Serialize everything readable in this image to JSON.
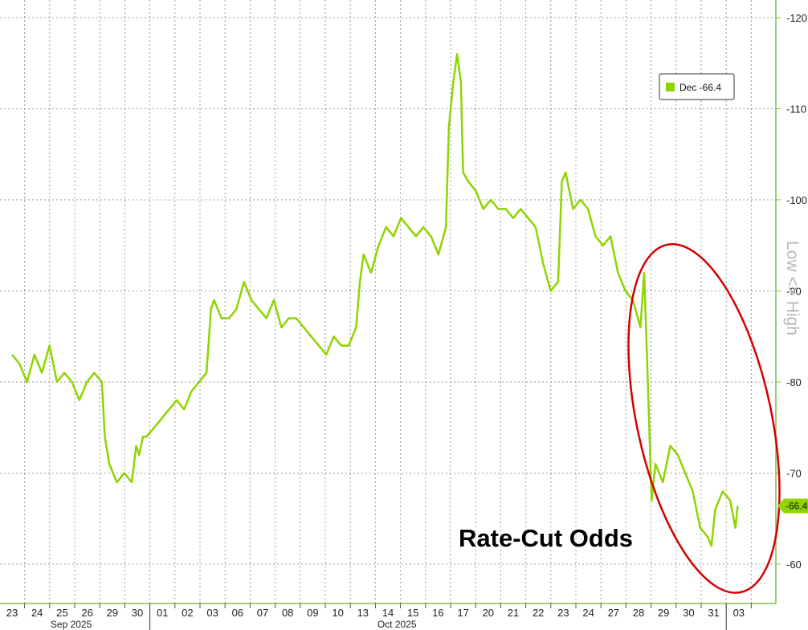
{
  "chart_data": {
    "type": "line",
    "ylabel": "Low <> High",
    "ylim": [
      55,
      121
    ],
    "y_ticks": [
      60,
      70,
      80,
      90,
      100,
      110,
      120
    ],
    "y_tick_labels": [
      "-60",
      "-70",
      "-80",
      "-90",
      "-100",
      "-110",
      "-120"
    ],
    "x_ticks": [
      "23",
      "24",
      "25",
      "26",
      "29",
      "30",
      "01",
      "02",
      "03",
      "06",
      "07",
      "08",
      "09",
      "10",
      "13",
      "14",
      "15",
      "16",
      "17",
      "20",
      "21",
      "22",
      "23",
      "24",
      "27",
      "28",
      "29",
      "30",
      "31",
      "03"
    ],
    "month_labels": [
      {
        "label": "Sep 2025",
        "tick_index": 3
      },
      {
        "label": "Oct 2025",
        "tick_index": 16
      }
    ],
    "grid": true,
    "legend_position": "top-right",
    "series": [
      {
        "name": "Dec",
        "legend_label": "Dec -66.4",
        "color": "#8fd400",
        "last_value": 66.4,
        "last_value_label": "-66.4",
        "values": [
          [
            0,
            83
          ],
          [
            1,
            82
          ],
          [
            2,
            80
          ],
          [
            3,
            83
          ],
          [
            4,
            81
          ],
          [
            5,
            84
          ],
          [
            6,
            80
          ],
          [
            7,
            81
          ],
          [
            8,
            80
          ],
          [
            9,
            78
          ],
          [
            10,
            80
          ],
          [
            11,
            81
          ],
          [
            12,
            80
          ],
          [
            12.4,
            74
          ],
          [
            13,
            71
          ],
          [
            14,
            69
          ],
          [
            15,
            70
          ],
          [
            16,
            69
          ],
          [
            16.6,
            73
          ],
          [
            17,
            72
          ],
          [
            17.5,
            74
          ],
          [
            18,
            74
          ],
          [
            19,
            75
          ],
          [
            20,
            76
          ],
          [
            21,
            77
          ],
          [
            22,
            78
          ],
          [
            23,
            77
          ],
          [
            24,
            79
          ],
          [
            25,
            80
          ],
          [
            26,
            81
          ],
          [
            26.6,
            88
          ],
          [
            27,
            89
          ],
          [
            28,
            87
          ],
          [
            29,
            87
          ],
          [
            30,
            88
          ],
          [
            31,
            91
          ],
          [
            32,
            89
          ],
          [
            33,
            88
          ],
          [
            34,
            87
          ],
          [
            35,
            89
          ],
          [
            36,
            86
          ],
          [
            37,
            87
          ],
          [
            38,
            87
          ],
          [
            39,
            86
          ],
          [
            40,
            85
          ],
          [
            41,
            84
          ],
          [
            42,
            83
          ],
          [
            43,
            85
          ],
          [
            44,
            84
          ],
          [
            45,
            84
          ],
          [
            46,
            86
          ],
          [
            46.5,
            91
          ],
          [
            47,
            94
          ],
          [
            48,
            92
          ],
          [
            49,
            95
          ],
          [
            50,
            97
          ],
          [
            51,
            96
          ],
          [
            52,
            98
          ],
          [
            53,
            97
          ],
          [
            54,
            96
          ],
          [
            55,
            97
          ],
          [
            56,
            96
          ],
          [
            57,
            94
          ],
          [
            58,
            97
          ],
          [
            58.4,
            108
          ],
          [
            59,
            113
          ],
          [
            59.5,
            116
          ],
          [
            60,
            113
          ],
          [
            60.3,
            103
          ],
          [
            61,
            102
          ],
          [
            62,
            101
          ],
          [
            63,
            99
          ],
          [
            64,
            100
          ],
          [
            65,
            99
          ],
          [
            66,
            99
          ],
          [
            67,
            98
          ],
          [
            68,
            99
          ],
          [
            69,
            98
          ],
          [
            70,
            97
          ],
          [
            71,
            93
          ],
          [
            72,
            90
          ],
          [
            73,
            91
          ],
          [
            73.5,
            102
          ],
          [
            74,
            103
          ],
          [
            75,
            99
          ],
          [
            76,
            100
          ],
          [
            77,
            99
          ],
          [
            78,
            96
          ],
          [
            79,
            95
          ],
          [
            80,
            96
          ],
          [
            81,
            92
          ],
          [
            82,
            90
          ],
          [
            83,
            89
          ],
          [
            84,
            86
          ],
          [
            84.5,
            92
          ],
          [
            85,
            80
          ],
          [
            85.5,
            67
          ],
          [
            86,
            71
          ],
          [
            87,
            69
          ],
          [
            88,
            73
          ],
          [
            89,
            72
          ],
          [
            90,
            70
          ],
          [
            91,
            68
          ],
          [
            92,
            64
          ],
          [
            93,
            63
          ],
          [
            93.5,
            62
          ],
          [
            94,
            66
          ],
          [
            95,
            68
          ],
          [
            96,
            67
          ],
          [
            96.7,
            64
          ],
          [
            97,
            66.4
          ]
        ]
      }
    ],
    "annotations": [
      {
        "text": "Rate-Cut Odds"
      }
    ],
    "highlight": {
      "shape": "ellipse",
      "color": "#d40000",
      "x_range": [
        83.5,
        101.5
      ],
      "y_range": [
        56.5,
        95.5
      ]
    }
  }
}
